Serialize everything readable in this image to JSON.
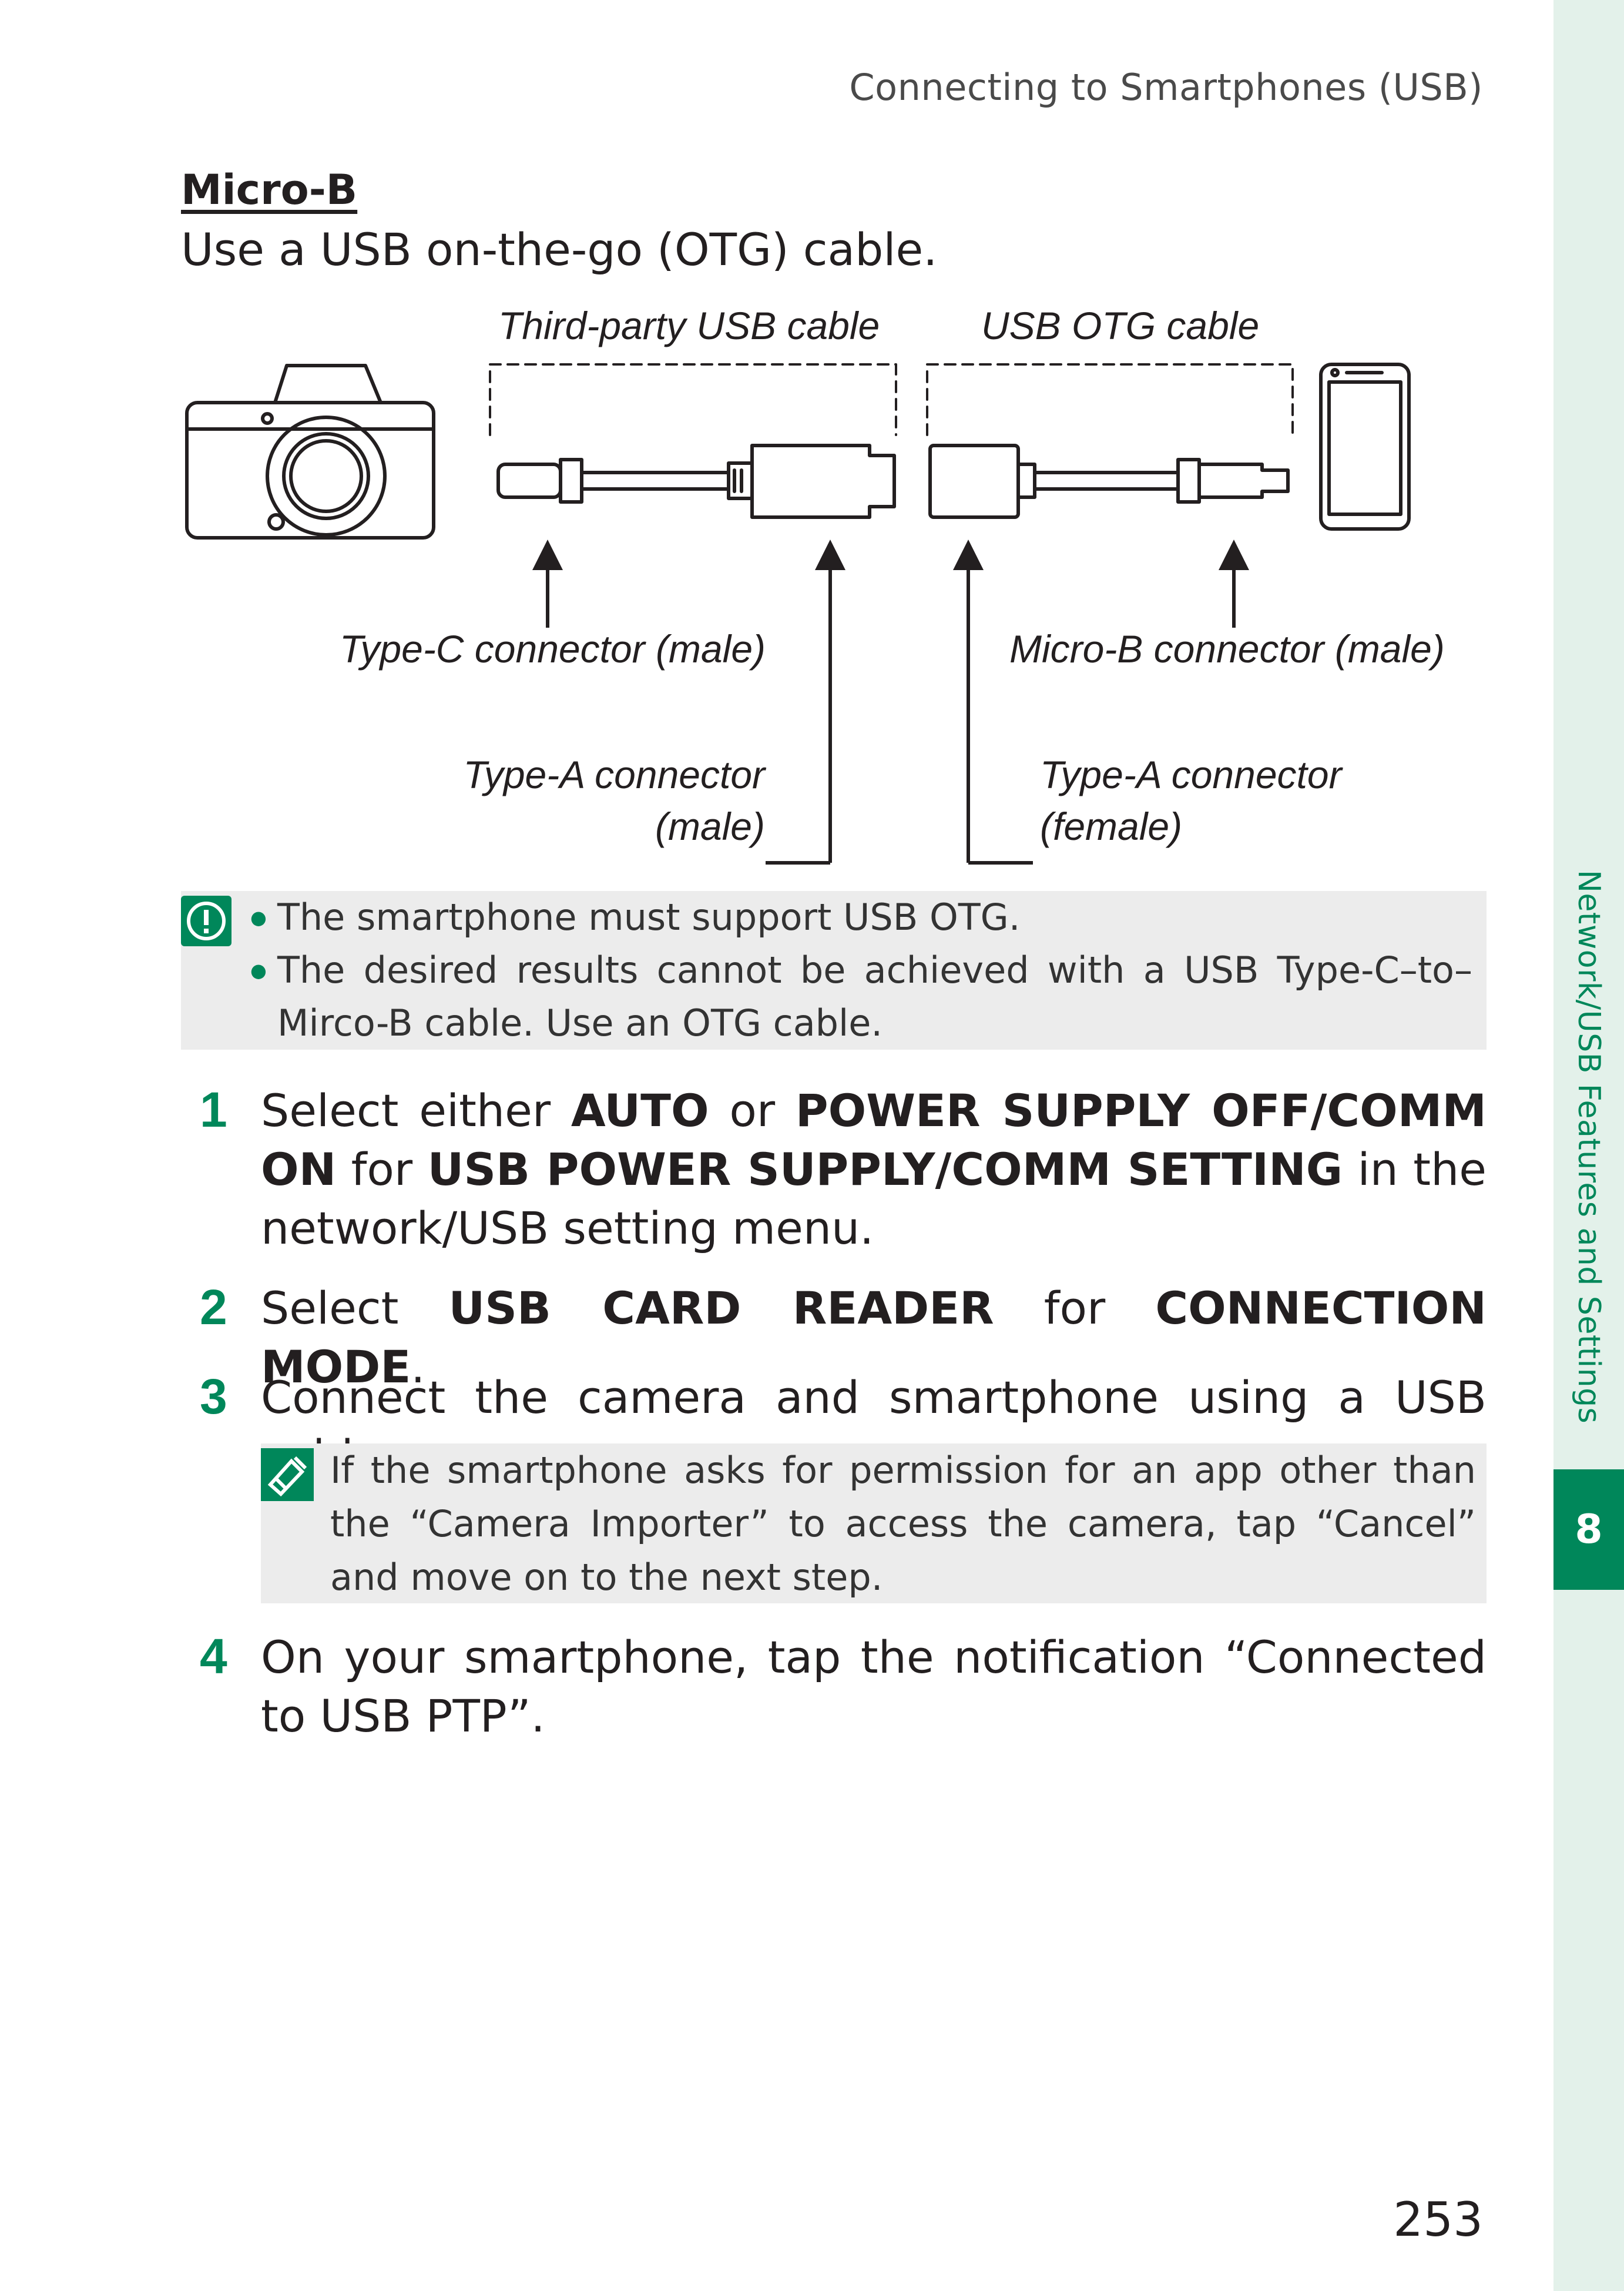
{
  "header": {
    "title": "Connecting to Smartphones (USB)"
  },
  "side_tab": {
    "label": "Network/USB Features and Settings",
    "chapter": "8"
  },
  "section": {
    "title": "Micro-B",
    "lead": "Use a USB on-the-go (OTG) cable."
  },
  "diagram": {
    "label_third_party": "Third-party USB cable",
    "label_otg": "USB OTG cable",
    "label_typec": "Type-C connector (male)",
    "label_microb": "Micro-B connector (male)",
    "label_typea_male_1": "Type-A connector",
    "label_typea_male_2": "(male)",
    "label_typea_female_1": "Type-A connector",
    "label_typea_female_2": "(female)"
  },
  "caution": {
    "items": [
      "The smartphone must support USB OTG.",
      "The desired results cannot be achieved with a USB Type-C–to–Mirco-B cable. Use an OTG cable."
    ]
  },
  "steps": [
    {
      "num": "1",
      "t1": "Select either ",
      "b1": "AUTO",
      "t2": " or ",
      "b2": "POWER SUPPLY OFF/COMM ON",
      "t3": " for ",
      "b3": "USB POWER SUPPLY/COMM SETTING",
      "t4": " in the network/USB setting menu."
    },
    {
      "num": "2",
      "t1": "Select ",
      "b1": "USB CARD READER",
      "t2": " for ",
      "b2": "CONNECTION MODE",
      "t3": "."
    },
    {
      "num": "3",
      "text": "Connect the camera and smartphone using a USB cable."
    },
    {
      "num": "4",
      "text": "On your smartphone, tap the notification “Connected to USB PTP”."
    }
  ],
  "note": {
    "text": "If the smartphone asks for permission for an app other than the “Camera Importer” to access the camera, tap “Cancel” and move on to the next step."
  },
  "page_number": "253",
  "colors": {
    "accent": "#00875a",
    "box_bg": "#ececec",
    "tab_bg": "#e3f1ea"
  }
}
